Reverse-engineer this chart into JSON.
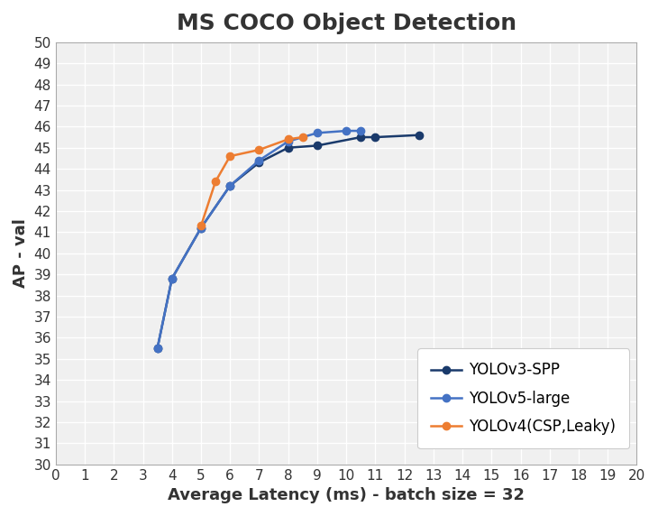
{
  "title": "MS COCO Object Detection",
  "xlabel": "Average Latency (ms) - batch size = 32",
  "ylabel": "AP - val",
  "xlim": [
    0,
    20
  ],
  "ylim": [
    30,
    50
  ],
  "xticks": [
    0,
    1,
    2,
    3,
    4,
    5,
    6,
    7,
    8,
    9,
    10,
    11,
    12,
    13,
    14,
    15,
    16,
    17,
    18,
    19,
    20
  ],
  "yticks": [
    30,
    31,
    32,
    33,
    34,
    35,
    36,
    37,
    38,
    39,
    40,
    41,
    42,
    43,
    44,
    45,
    46,
    47,
    48,
    49,
    50
  ],
  "series": [
    {
      "label": "YOLOv3-SPP",
      "color": "#1a3a6b",
      "marker": "o",
      "x": [
        3.5,
        4.0,
        5.0,
        6.0,
        7.0,
        8.0,
        9.0,
        10.5,
        11.0,
        12.5
      ],
      "y": [
        35.5,
        38.8,
        41.2,
        43.2,
        44.3,
        45.0,
        45.1,
        45.5,
        45.5,
        45.6
      ]
    },
    {
      "label": "YOLOv5-large",
      "color": "#4472c4",
      "marker": "o",
      "x": [
        3.5,
        4.0,
        5.0,
        6.0,
        7.0,
        8.0,
        9.0,
        10.0,
        10.5
      ],
      "y": [
        35.5,
        38.8,
        41.2,
        43.2,
        44.4,
        45.3,
        45.7,
        45.8,
        45.8
      ]
    },
    {
      "label": "YOLOv4(CSP,Leaky)",
      "color": "#ed7d31",
      "marker": "o",
      "x": [
        5.0,
        5.5,
        6.0,
        7.0,
        8.0,
        8.5
      ],
      "y": [
        41.3,
        43.4,
        44.6,
        44.9,
        45.4,
        45.5
      ]
    }
  ],
  "background_color": "#ffffff",
  "plot_bg_color": "#f0f0f0",
  "grid_color": "#ffffff",
  "title_fontsize": 18,
  "label_fontsize": 13,
  "tick_fontsize": 11,
  "legend_fontsize": 12,
  "line_width": 1.8,
  "marker_size": 6
}
